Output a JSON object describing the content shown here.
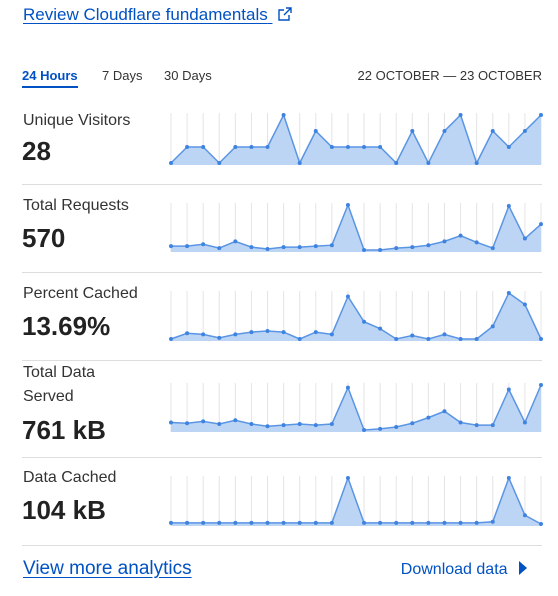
{
  "header": {
    "link": "Review Cloudflare fundamentals"
  },
  "tabs": [
    "24 Hours",
    "7 Days",
    "30 Days"
  ],
  "active_tab": 0,
  "date_range": "22 OCTOBER — 23 OCTOBER",
  "metrics": [
    {
      "label": "Unique Visitors",
      "value": "28",
      "sparkline": [
        1,
        2,
        2,
        1,
        2,
        2,
        2,
        4,
        1,
        3,
        2,
        2,
        2,
        2,
        1,
        3,
        1,
        3,
        4,
        1,
        3,
        2,
        3,
        4
      ]
    },
    {
      "label": "Total Requests",
      "value": "570",
      "sparkline": [
        12,
        12,
        16,
        8,
        22,
        10,
        6,
        10,
        10,
        12,
        14,
        98,
        4,
        4,
        8,
        10,
        14,
        22,
        34,
        20,
        8,
        96,
        28,
        58
      ]
    },
    {
      "label": "Percent Cached",
      "value": "13.69%",
      "sparkline": [
        0,
        5,
        4,
        1,
        4,
        6,
        7,
        6,
        0,
        6,
        4,
        37,
        15,
        9,
        0,
        3,
        0,
        4,
        0,
        0,
        11,
        40,
        30,
        0
      ]
    },
    {
      "label": "Total Data Served",
      "value": "761 kB",
      "sparkline": [
        22,
        20,
        25,
        18,
        28,
        18,
        12,
        15,
        18,
        15,
        18,
        115,
        2,
        5,
        10,
        20,
        35,
        52,
        22,
        15,
        15,
        110,
        22,
        122
      ]
    },
    {
      "label": "Data Cached",
      "value": "104 kB",
      "sparkline": [
        1,
        1,
        1,
        1,
        1,
        1,
        1,
        1,
        1,
        1,
        1,
        42,
        1,
        1,
        1,
        1,
        1,
        1,
        1,
        1,
        2,
        42,
        8,
        0
      ]
    }
  ],
  "footer": {
    "view_more": "View more analytics",
    "download": "Download data"
  }
}
